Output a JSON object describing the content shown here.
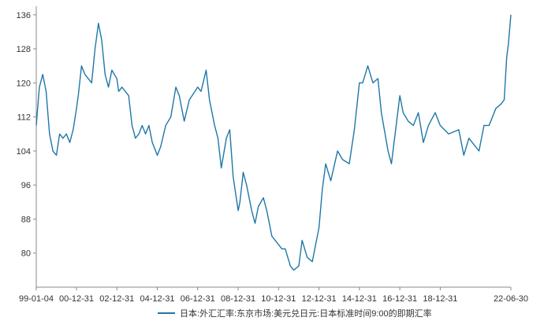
{
  "chart_data": {
    "type": "line",
    "title": "",
    "xlabel": "",
    "ylabel": "",
    "y_ticks": [
      80,
      88,
      96,
      104,
      112,
      120,
      128,
      136
    ],
    "x_ticks": [
      "99-01-04",
      "00-12-31",
      "02-12-31",
      "04-12-31",
      "06-12-31",
      "08-12-31",
      "10-12-31",
      "12-12-31",
      "14-12-31",
      "16-12-31",
      "18-12-31",
      "22-06-30"
    ],
    "ylim": [
      72,
      138
    ],
    "grid": false,
    "legend_position": "bottom-center",
    "series": [
      {
        "name": "日本:外汇汇率:东京市场:美元兑日元:日本标准时间9:00的即期汇率",
        "color": "#1f77a8",
        "points": [
          [
            "1999-01-04",
            110.0
          ],
          [
            "1999-03-01",
            119.0
          ],
          [
            "1999-05-01",
            122.0
          ],
          [
            "1999-07-01",
            118.0
          ],
          [
            "1999-09-01",
            108.0
          ],
          [
            "1999-11-01",
            104.0
          ],
          [
            "2000-01-03",
            103.0
          ],
          [
            "2000-03-01",
            108.0
          ],
          [
            "2000-05-01",
            107.0
          ],
          [
            "2000-07-01",
            108.0
          ],
          [
            "2000-09-01",
            106.0
          ],
          [
            "2000-11-01",
            109.0
          ],
          [
            "2000-12-31",
            114.0
          ],
          [
            "2001-02-01",
            117.0
          ],
          [
            "2001-04-01",
            124.0
          ],
          [
            "2001-06-01",
            122.0
          ],
          [
            "2001-08-01",
            121.0
          ],
          [
            "2001-10-01",
            120.0
          ],
          [
            "2001-12-01",
            128.0
          ],
          [
            "2002-02-01",
            134.0
          ],
          [
            "2002-04-01",
            130.0
          ],
          [
            "2002-06-01",
            122.0
          ],
          [
            "2002-08-01",
            119.0
          ],
          [
            "2002-10-01",
            123.0
          ],
          [
            "2002-12-31",
            121.0
          ],
          [
            "2003-02-01",
            118.0
          ],
          [
            "2003-04-01",
            119.0
          ],
          [
            "2003-06-01",
            118.0
          ],
          [
            "2003-08-01",
            117.0
          ],
          [
            "2003-10-01",
            110.0
          ],
          [
            "2003-12-01",
            107.0
          ],
          [
            "2004-02-01",
            108.0
          ],
          [
            "2004-04-01",
            110.0
          ],
          [
            "2004-06-01",
            108.0
          ],
          [
            "2004-08-01",
            110.0
          ],
          [
            "2004-10-01",
            106.0
          ],
          [
            "2004-12-31",
            103.0
          ],
          [
            "2005-03-01",
            105.0
          ],
          [
            "2005-06-01",
            110.0
          ],
          [
            "2005-09-01",
            112.0
          ],
          [
            "2005-12-01",
            119.0
          ],
          [
            "2006-02-01",
            117.0
          ],
          [
            "2006-05-01",
            111.0
          ],
          [
            "2006-08-01",
            116.0
          ],
          [
            "2006-12-31",
            119.0
          ],
          [
            "2007-03-01",
            118.0
          ],
          [
            "2007-06-01",
            123.0
          ],
          [
            "2007-08-01",
            116.0
          ],
          [
            "2007-11-01",
            110.0
          ],
          [
            "2008-01-01",
            107.0
          ],
          [
            "2008-03-01",
            100.0
          ],
          [
            "2008-06-01",
            107.0
          ],
          [
            "2008-08-01",
            109.0
          ],
          [
            "2008-10-01",
            98.0
          ],
          [
            "2008-12-31",
            90.0
          ],
          [
            "2009-02-01",
            92.0
          ],
          [
            "2009-04-01",
            99.0
          ],
          [
            "2009-06-01",
            96.0
          ],
          [
            "2009-09-01",
            90.0
          ],
          [
            "2009-11-01",
            87.0
          ],
          [
            "2010-01-01",
            91.0
          ],
          [
            "2010-04-01",
            93.0
          ],
          [
            "2010-06-01",
            90.0
          ],
          [
            "2010-09-01",
            84.0
          ],
          [
            "2010-12-31",
            82.0
          ],
          [
            "2011-03-01",
            81.0
          ],
          [
            "2011-05-01",
            81.0
          ],
          [
            "2011-08-01",
            77.0
          ],
          [
            "2011-10-01",
            76.0
          ],
          [
            "2012-01-01",
            77.0
          ],
          [
            "2012-03-01",
            83.0
          ],
          [
            "2012-06-01",
            79.0
          ],
          [
            "2012-09-01",
            78.0
          ],
          [
            "2012-12-31",
            86.0
          ],
          [
            "2013-03-01",
            95.0
          ],
          [
            "2013-05-01",
            101.0
          ],
          [
            "2013-08-01",
            97.0
          ],
          [
            "2013-12-01",
            104.0
          ],
          [
            "2014-03-01",
            102.0
          ],
          [
            "2014-07-01",
            101.0
          ],
          [
            "2014-10-01",
            109.0
          ],
          [
            "2014-12-31",
            120.0
          ],
          [
            "2015-03-01",
            120.0
          ],
          [
            "2015-06-01",
            124.0
          ],
          [
            "2015-09-01",
            120.0
          ],
          [
            "2015-12-01",
            121.0
          ],
          [
            "2016-02-01",
            113.0
          ],
          [
            "2016-06-01",
            104.0
          ],
          [
            "2016-08-01",
            101.0
          ],
          [
            "2016-12-31",
            117.0
          ],
          [
            "2017-03-01",
            113.0
          ],
          [
            "2017-06-01",
            111.0
          ],
          [
            "2017-09-01",
            110.0
          ],
          [
            "2017-12-01",
            113.0
          ],
          [
            "2018-03-01",
            106.0
          ],
          [
            "2018-06-01",
            110.0
          ],
          [
            "2018-10-01",
            113.0
          ],
          [
            "2018-12-31",
            110.0
          ],
          [
            "2019-06-01",
            108.0
          ],
          [
            "2019-12-01",
            109.0
          ],
          [
            "2020-03-01",
            103.0
          ],
          [
            "2020-06-01",
            107.0
          ],
          [
            "2020-12-01",
            104.0
          ],
          [
            "2021-03-01",
            110.0
          ],
          [
            "2021-06-01",
            110.0
          ],
          [
            "2021-10-01",
            114.0
          ],
          [
            "2021-12-31",
            115.0
          ],
          [
            "2022-03-01",
            116.0
          ],
          [
            "2022-04-15",
            126.0
          ],
          [
            "2022-05-15",
            129.0
          ],
          [
            "2022-06-30",
            136.0
          ]
        ]
      }
    ]
  }
}
